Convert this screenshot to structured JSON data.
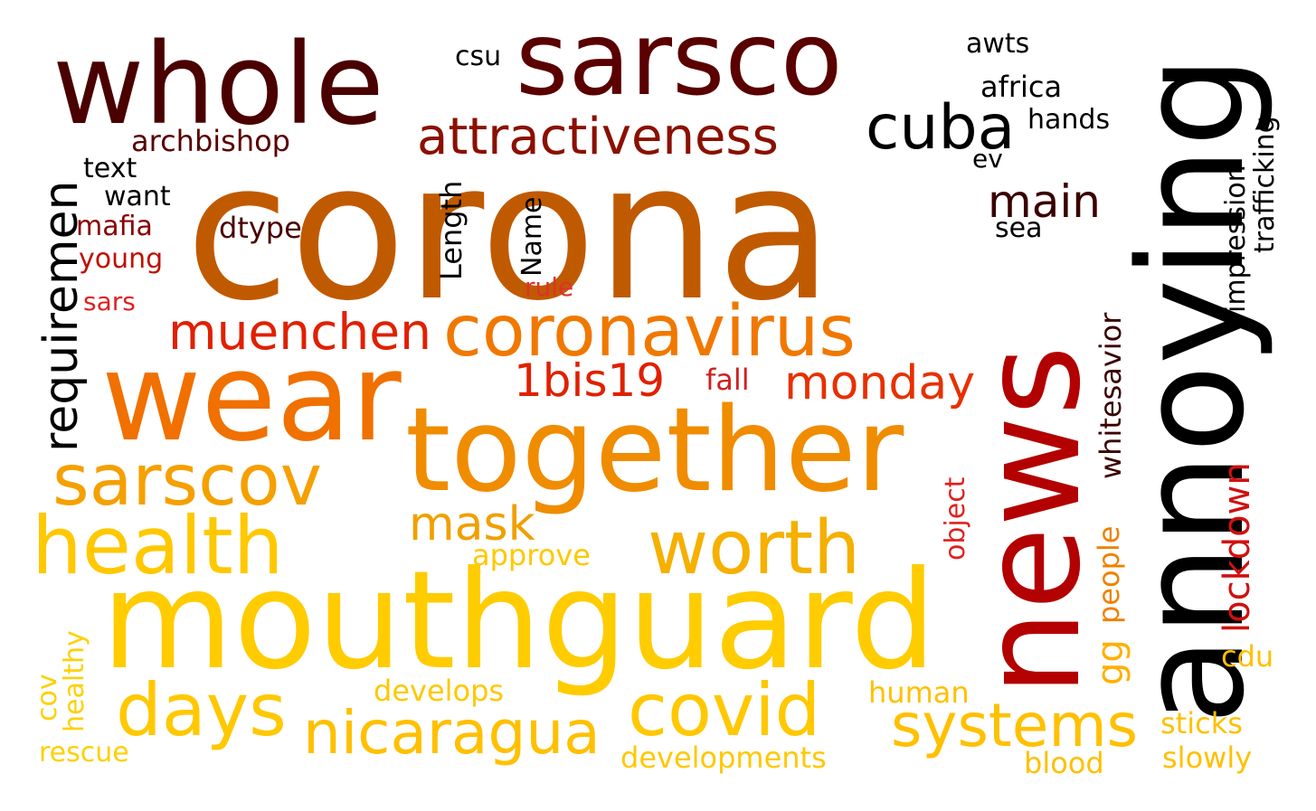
{
  "words": [
    {
      "text": "corona",
      "color": "#c05a00"
    },
    {
      "text": "mouthguard",
      "color": "#ffcc00"
    },
    {
      "text": "news",
      "color": "#b30000"
    },
    {
      "text": "annoying",
      "color": "#000000"
    },
    {
      "text": "together",
      "color": "#f08c00"
    },
    {
      "text": "wear",
      "color": "#f07000"
    },
    {
      "text": "sarsco",
      "color": "#5a0000"
    },
    {
      "text": "whole",
      "color": "#4a0000"
    },
    {
      "text": "coronavirus",
      "color": "#f07800"
    },
    {
      "text": "health",
      "color": "#ffc800"
    },
    {
      "text": "sarscov",
      "color": "#f5a000"
    },
    {
      "text": "worth",
      "color": "#f5b000"
    },
    {
      "text": "days",
      "color": "#ffc800"
    },
    {
      "text": "covid",
      "color": "#ffc800"
    },
    {
      "text": "systems",
      "color": "#ffc000"
    },
    {
      "text": "nicaragua",
      "color": "#ffc000"
    },
    {
      "text": "attractiveness",
      "color": "#8a1000"
    },
    {
      "text": "requiremen",
      "color": "#000000"
    },
    {
      "text": "cuba",
      "color": "#000000"
    },
    {
      "text": "muenchen",
      "color": "#e02000"
    },
    {
      "text": "monday",
      "color": "#e83000"
    },
    {
      "text": "1bis19",
      "color": "#e02000"
    },
    {
      "text": "mask",
      "color": "#f0a000"
    },
    {
      "text": "main",
      "color": "#3a0000"
    },
    {
      "text": "lockdown",
      "color": "#d01010"
    },
    {
      "text": "whitesavior",
      "color": "#3a0000"
    },
    {
      "text": "archbishop",
      "color": "#5a0000"
    },
    {
      "text": "text",
      "color": "#000000"
    },
    {
      "text": "want",
      "color": "#000000"
    },
    {
      "text": "mafia",
      "color": "#8a0000"
    },
    {
      "text": "dtype",
      "color": "#4a0000"
    },
    {
      "text": "young",
      "color": "#c01000"
    },
    {
      "text": "sars",
      "color": "#e02020"
    },
    {
      "text": "Length",
      "color": "#000000"
    },
    {
      "text": "Name",
      "color": "#000000"
    },
    {
      "text": "rule",
      "color": "#e03030"
    },
    {
      "text": "fall",
      "color": "#d02020"
    },
    {
      "text": "csu",
      "color": "#000000"
    },
    {
      "text": "awts",
      "color": "#000000"
    },
    {
      "text": "africa",
      "color": "#000000"
    },
    {
      "text": "hands",
      "color": "#000000"
    },
    {
      "text": "ev",
      "color": "#000000"
    },
    {
      "text": "sea",
      "color": "#000000"
    },
    {
      "text": "impression",
      "color": "#000000"
    },
    {
      "text": "trafficking",
      "color": "#000000"
    },
    {
      "text": "approve",
      "color": "#ffc800"
    },
    {
      "text": "develops",
      "color": "#ffc800"
    },
    {
      "text": "developments",
      "color": "#ffc800"
    },
    {
      "text": "human",
      "color": "#ffc000"
    },
    {
      "text": "object",
      "color": "#e02020"
    },
    {
      "text": "people",
      "color": "#f08000"
    },
    {
      "text": "gg",
      "color": "#ffb000"
    },
    {
      "text": "cdu",
      "color": "#ffc000"
    },
    {
      "text": "sticks",
      "color": "#ffc000"
    },
    {
      "text": "slowly",
      "color": "#ffc000"
    },
    {
      "text": "blood",
      "color": "#ffc000"
    },
    {
      "text": "healthy",
      "color": "#ffd000"
    },
    {
      "text": "cov",
      "color": "#ffd000"
    },
    {
      "text": "rescue",
      "color": "#ffd000"
    }
  ]
}
